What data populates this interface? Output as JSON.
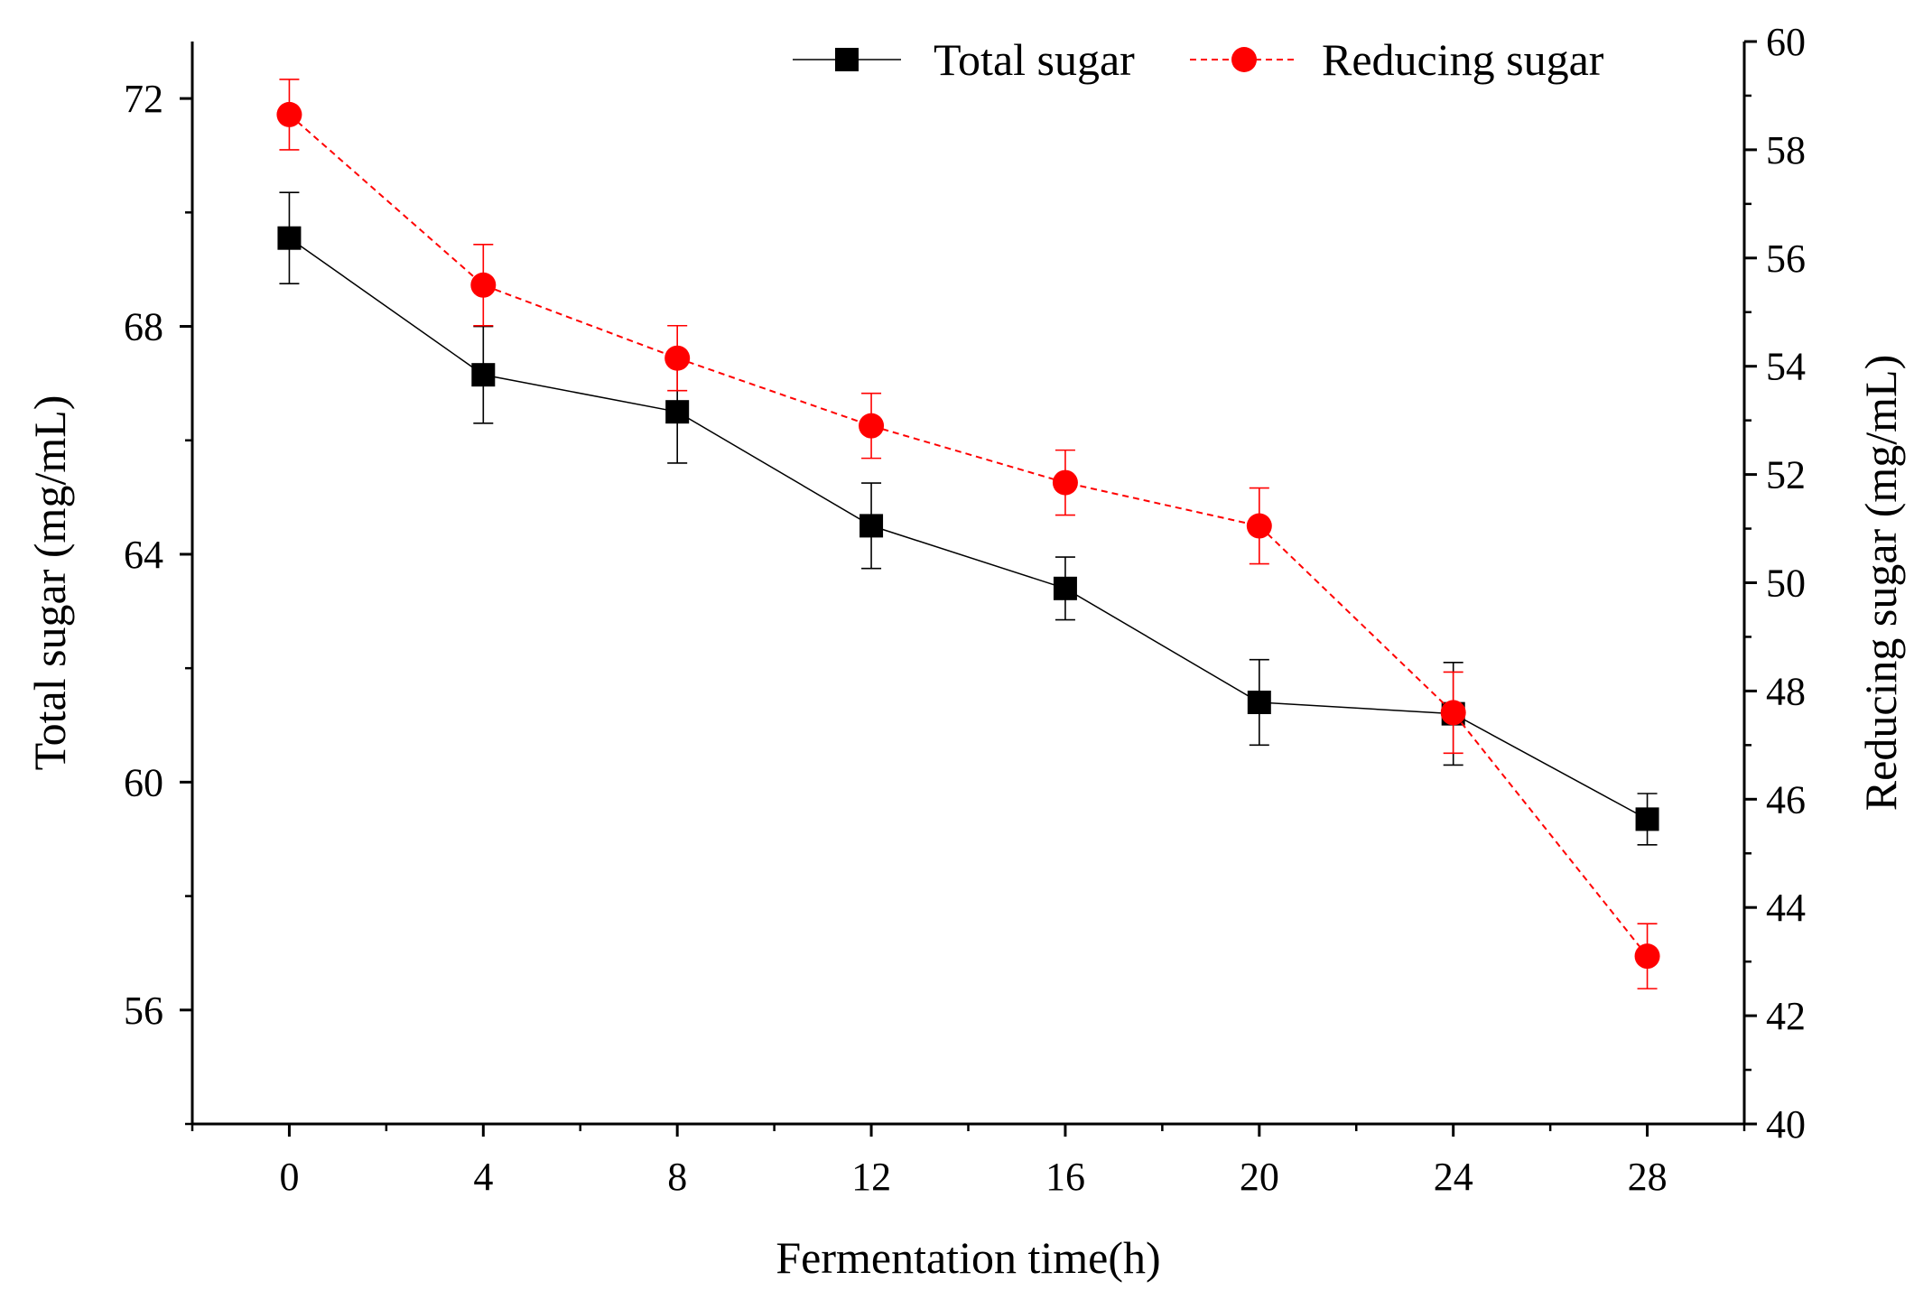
{
  "chart_data": {
    "type": "line",
    "xlabel": "Fermentation time(h)",
    "ylabel_left": "Total sugar (mg/mL)",
    "ylabel_right": "Reducing sugar (mg/mL)",
    "x": [
      0,
      4,
      8,
      12,
      16,
      20,
      24,
      28
    ],
    "x_ticks": [
      "0",
      "4",
      "8",
      "12",
      "16",
      "20",
      "24",
      "28"
    ],
    "xlim": [
      -2,
      30
    ],
    "ylim_left": [
      54,
      73
    ],
    "yticks_left": [
      "56",
      "60",
      "64",
      "68",
      "72"
    ],
    "ylim_right": [
      40,
      60
    ],
    "yticks_right": [
      "40",
      "42",
      "44",
      "46",
      "48",
      "50",
      "52",
      "54",
      "56",
      "58",
      "60"
    ],
    "legend_position": "top",
    "series": [
      {
        "name": "Total sugar",
        "axis": "left",
        "color": "#000000",
        "marker": "square",
        "line_style": "solid",
        "values": [
          69.55,
          67.15,
          66.5,
          64.5,
          63.4,
          61.4,
          61.2,
          59.35
        ],
        "errors": [
          0.8,
          0.85,
          0.9,
          0.75,
          0.55,
          0.75,
          0.9,
          0.45
        ]
      },
      {
        "name": "Reducing sugar",
        "axis": "right",
        "color": "#ff0000",
        "marker": "circle",
        "line_style": "dashed",
        "values": [
          58.65,
          55.5,
          54.15,
          52.9,
          51.85,
          51.05,
          47.6,
          43.1
        ],
        "errors": [
          0.65,
          0.75,
          0.6,
          0.6,
          0.6,
          0.7,
          0.75,
          0.6
        ]
      }
    ]
  }
}
